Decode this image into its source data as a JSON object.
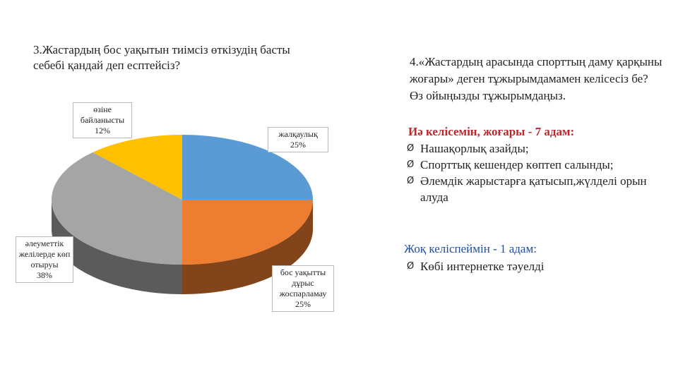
{
  "left_question": "3.Жастардың бос уақытын тиімсіз өткізудің басты себебі қандай деп есптейсіз?",
  "right_question": "4.«Жастардың арасында спорттың даму қарқыны жоғары» деген тұжырымдамамен келісесіз бе? Өз ойыңызды тұжырымдаңыз.",
  "chart_data": {
    "type": "pie",
    "slices": [
      {
        "label": "жалқаулық",
        "value": 25,
        "text": "25%",
        "color": "#5b9bd5"
      },
      {
        "label": "бос уақытты дұрыс жоспарламау",
        "value": 25,
        "text": "25%",
        "color": "#ed7d31"
      },
      {
        "label": "әлеуметтік желілерде көп отыруы",
        "value": 38,
        "text": "38%",
        "color": "#a5a5a5"
      },
      {
        "label": "өзіне байланысты",
        "value": 12,
        "text": "12%",
        "color": "#ffc000"
      }
    ]
  },
  "answers": {
    "yes_title": "Иә келісемін, жоғары - 7 адам:",
    "yes_items": [
      "Нашақорлық азайды;",
      "Спорттық кешендер көптеп салынды;",
      "Әлемдік жарыстарға қатысып,жүлделі орын алуда"
    ],
    "no_title": "Жоқ келіспеймін - 1 адам:",
    "no_items": [
      "Көбі интернетке тәуелді"
    ],
    "bullet_marker": "Ø"
  }
}
